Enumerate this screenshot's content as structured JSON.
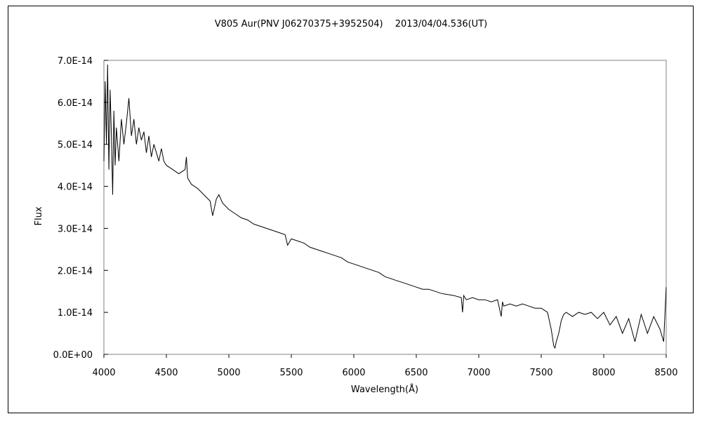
{
  "chart_data": {
    "type": "line",
    "title": "V805 Aur(PNV J06270375+3952504)　 2013/04/04.536(UT)",
    "xlabel": "Wavelength(Å)",
    "ylabel": "Flux",
    "xlim": [
      4000,
      8500
    ],
    "ylim": [
      0,
      7e-14
    ],
    "xticks": [
      4000,
      4500,
      5000,
      5500,
      6000,
      6500,
      7000,
      7500,
      8000,
      8500
    ],
    "xtick_labels": [
      "4000",
      "4500",
      "5000",
      "5500",
      "6000",
      "6500",
      "7000",
      "7500",
      "8000",
      "8500"
    ],
    "yticks": [
      0,
      1e-14,
      2e-14,
      3e-14,
      4e-14,
      5e-14,
      6e-14,
      7e-14
    ],
    "ytick_labels": [
      "0.0E+00",
      "1.0E-14",
      "2.0E-14",
      "3.0E-14",
      "4.0E-14",
      "5.0E-14",
      "6.0E-14",
      "7.0E-14"
    ],
    "grid": false,
    "legend": "none",
    "series": [
      {
        "color": "#000000",
        "x": [
          4000,
          4010,
          4020,
          4030,
          4040,
          4050,
          4060,
          4070,
          4080,
          4090,
          4100,
          4120,
          4140,
          4160,
          4180,
          4200,
          4220,
          4240,
          4260,
          4280,
          4300,
          4320,
          4340,
          4360,
          4380,
          4400,
          4420,
          4440,
          4460,
          4480,
          4500,
          4550,
          4600,
          4650,
          4660,
          4670,
          4700,
          4750,
          4800,
          4850,
          4870,
          4900,
          4920,
          4950,
          5000,
          5050,
          5100,
          5150,
          5200,
          5250,
          5300,
          5350,
          5400,
          5450,
          5470,
          5500,
          5550,
          5600,
          5650,
          5700,
          5750,
          5800,
          5850,
          5900,
          5950,
          6000,
          6050,
          6100,
          6150,
          6200,
          6250,
          6300,
          6350,
          6400,
          6450,
          6500,
          6550,
          6600,
          6650,
          6700,
          6800,
          6860,
          6870,
          6880,
          6900,
          6950,
          7000,
          7050,
          7100,
          7150,
          7180,
          7190,
          7200,
          7250,
          7300,
          7350,
          7400,
          7450,
          7500,
          7550,
          7580,
          7600,
          7610,
          7620,
          7640,
          7660,
          7680,
          7700,
          7750,
          7800,
          7850,
          7900,
          7950,
          8000,
          8050,
          8100,
          8150,
          8200,
          8250,
          8300,
          8350,
          8400,
          8450,
          8480,
          8500
        ],
        "values": [
          4.6e-14,
          6.5e-14,
          5e-14,
          6.9e-14,
          4.4e-14,
          6.3e-14,
          5.2e-14,
          3.8e-14,
          5.8e-14,
          4.5e-14,
          5.4e-14,
          4.6e-14,
          5.6e-14,
          5e-14,
          5.5e-14,
          6.1e-14,
          5.2e-14,
          5.6e-14,
          5e-14,
          5.4e-14,
          5.1e-14,
          5.3e-14,
          4.8e-14,
          5.2e-14,
          4.7e-14,
          5e-14,
          4.8e-14,
          4.6e-14,
          4.9e-14,
          4.6e-14,
          4.5e-14,
          4.4e-14,
          4.3e-14,
          4.4e-14,
          4.7e-14,
          4.2e-14,
          4.05e-14,
          3.95e-14,
          3.8e-14,
          3.65e-14,
          3.3e-14,
          3.7e-14,
          3.8e-14,
          3.6e-14,
          3.45e-14,
          3.35e-14,
          3.25e-14,
          3.2e-14,
          3.1e-14,
          3.05e-14,
          3e-14,
          2.95e-14,
          2.9e-14,
          2.85e-14,
          2.6e-14,
          2.75e-14,
          2.7e-14,
          2.65e-14,
          2.55e-14,
          2.5e-14,
          2.45e-14,
          2.4e-14,
          2.35e-14,
          2.3e-14,
          2.2e-14,
          2.15e-14,
          2.1e-14,
          2.05e-14,
          2e-14,
          1.95e-14,
          1.85e-14,
          1.8e-14,
          1.75e-14,
          1.7e-14,
          1.65e-14,
          1.6e-14,
          1.55e-14,
          1.55e-14,
          1.5e-14,
          1.45e-14,
          1.4e-14,
          1.35e-14,
          1e-14,
          1.4e-14,
          1.3e-14,
          1.35e-14,
          1.3e-14,
          1.3e-14,
          1.25e-14,
          1.3e-14,
          9e-15,
          1.25e-14,
          1.15e-14,
          1.2e-14,
          1.15e-14,
          1.2e-14,
          1.15e-14,
          1.1e-14,
          1.1e-14,
          1e-14,
          6e-15,
          2e-15,
          1.5e-15,
          3e-15,
          5e-15,
          8e-15,
          9.5e-15,
          1e-14,
          9e-15,
          1e-14,
          9.5e-15,
          1e-14,
          8.5e-15,
          1e-14,
          7e-15,
          9e-15,
          5e-15,
          8.5e-15,
          3e-15,
          9.5e-15,
          5e-15,
          9e-15,
          6e-15,
          3e-15,
          1.6e-14
        ]
      }
    ]
  }
}
